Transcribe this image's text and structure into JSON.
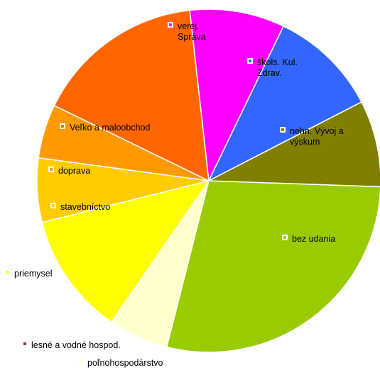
{
  "chart_data": {
    "type": "pie",
    "slices": [
      {
        "label": "bez udania",
        "value": 29.6,
        "color": "#99cc00",
        "marker_color": "#ffffff"
      },
      {
        "label": "poľnohospodárstvo",
        "value": 5.9,
        "color": "#ffffcc",
        "marker_color": "#ffffcc"
      },
      {
        "label": "priemysel",
        "value": 12.0,
        "color": "#ffff00",
        "marker_color": "#ffff00"
      },
      {
        "label": "lesné a vodné hospod.",
        "value": 0.0,
        "color": "#993366",
        "marker_color": "#993366"
      },
      {
        "label": "stavebníctvo",
        "value": 6.3,
        "color": "#ffcc00",
        "marker_color": "#ffffff"
      },
      {
        "label": "doprava",
        "value": 5.3,
        "color": "#ff9900",
        "marker_color": "#ffffff"
      },
      {
        "label": "Veľko a maloobchod",
        "value": 16.7,
        "color": "#ff6600",
        "marker_color": "#ffffff"
      },
      {
        "label": "verej.\nSpráva",
        "value": 9.3,
        "color": "#ff00ff",
        "marker_color": "#ffffff"
      },
      {
        "label": "škols. Kul.\nZdrav.",
        "value": 10.7,
        "color": "#3366ff",
        "marker_color": "#ffffff"
      },
      {
        "label": "nehn. Vývoj a\nvýskum",
        "value": 8.5,
        "color": "#808000",
        "marker_color": "#ffffff"
      }
    ]
  }
}
